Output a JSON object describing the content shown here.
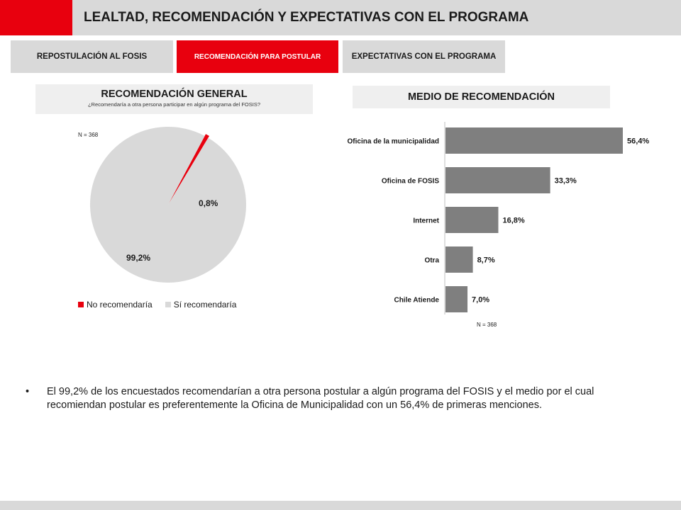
{
  "header": {
    "title": "LEALTAD, RECOMENDACIÓN Y EXPECTATIVAS CON EL PROGRAMA"
  },
  "tabs": [
    {
      "label": "REPOSTULACIÓN AL FOSIS",
      "active": false
    },
    {
      "label": "RECOMENDACIÓN PARA POSTULAR",
      "active": true
    },
    {
      "label": "EXPECTATIVAS CON EL PROGRAMA",
      "active": false
    }
  ],
  "colors": {
    "accent": "#e8000e",
    "panel": "#d9d9d9",
    "bar": "#7f7f7f",
    "pie_main": "#d9d9d9"
  },
  "left_section": {
    "title": "RECOMENDACIÓN GENERAL",
    "subtitle": "¿Recomendaría a otra persona participar en algún programa del FOSIS?",
    "n": "N = 368"
  },
  "right_section": {
    "title": "MEDIO DE RECOMENDACIÓN",
    "n": "N = 368"
  },
  "chart_data": [
    {
      "type": "pie",
      "title": "RECOMENDACIÓN GENERAL",
      "categories": [
        "No recomendaría",
        "Sí recomendaría"
      ],
      "values": [
        0.8,
        99.2
      ],
      "labels": [
        "0,8%",
        "99,2%"
      ],
      "colors": [
        "#e8000e",
        "#d9d9d9"
      ],
      "legend": "bottom"
    },
    {
      "type": "bar",
      "orientation": "horizontal",
      "title": "MEDIO DE RECOMENDACIÓN",
      "categories": [
        "Oficina de la municipalidad",
        "Oficina de FOSIS",
        "Internet",
        "Otra",
        "Chile Atiende"
      ],
      "values": [
        56.4,
        33.3,
        16.8,
        8.7,
        7.0
      ],
      "labels": [
        "56,4%",
        "33,3%",
        "16,8%",
        "8,7%",
        "7,0%"
      ],
      "xlim": [
        0,
        56.4
      ],
      "color": "#7f7f7f",
      "grid": false
    }
  ],
  "bullet": {
    "text": "El 99,2% de los encuestados recomendarían a otra persona postular a algún programa del FOSIS y el medio por el cual recomiendan postular es preferentemente la Oficina de Municipalidad con un 56,4% de primeras menciones."
  }
}
